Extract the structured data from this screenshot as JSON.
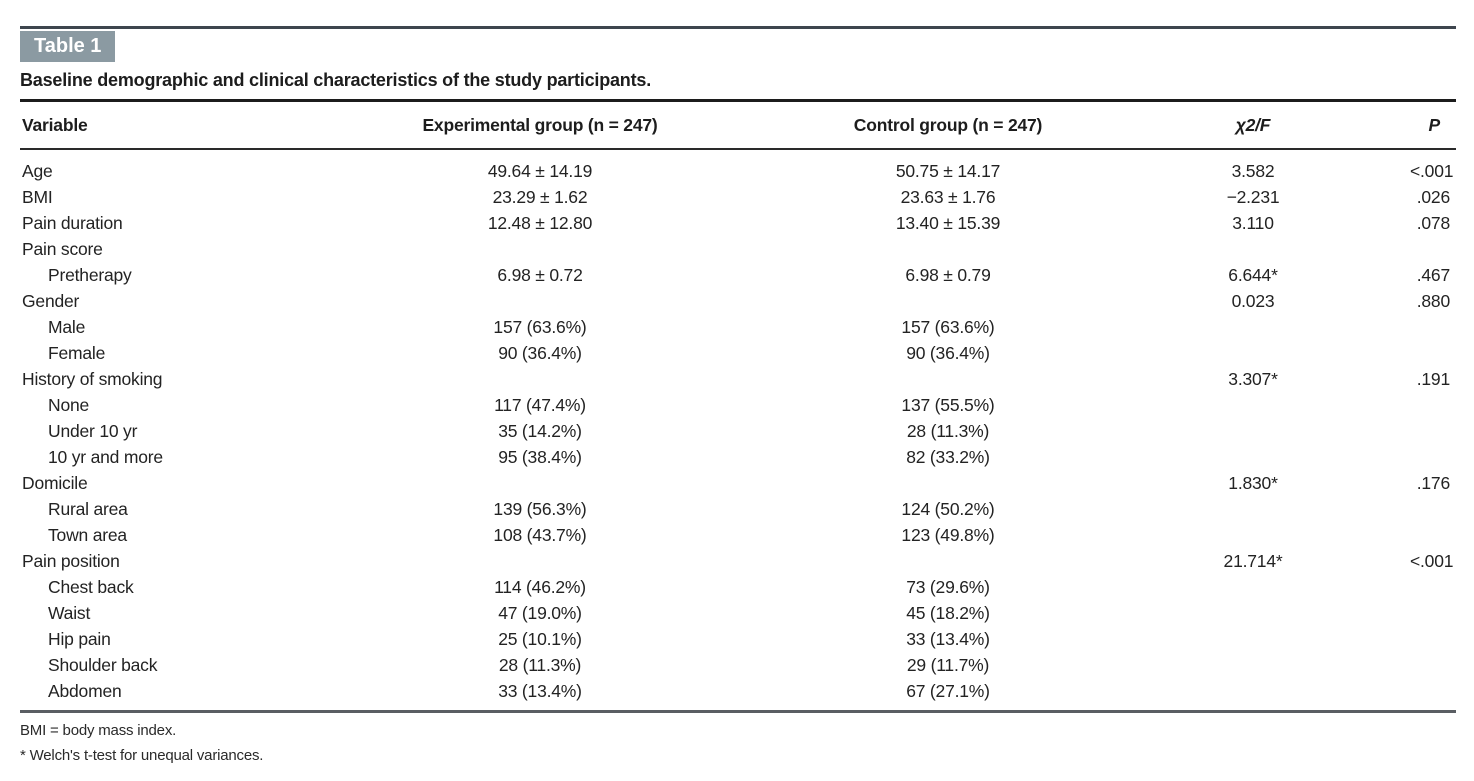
{
  "table_label": "Table 1",
  "title": "Baseline demographic and clinical characteristics of the study participants.",
  "columns": {
    "variable": "Variable",
    "experimental": "Experimental group (n = 247)",
    "control": "Control group (n = 247)",
    "chi2_f": "χ2/F",
    "p": "P"
  },
  "rows": [
    {
      "variable": "Age",
      "indent": 0,
      "experimental": "49.64 ± 14.19",
      "control": "50.75 ± 14.17",
      "chi2_f": "3.582",
      "p": "<.001"
    },
    {
      "variable": "BMI",
      "indent": 0,
      "experimental": "23.29 ± 1.62",
      "control": "23.63 ± 1.76",
      "chi2_f": "−2.231",
      "p": ".026"
    },
    {
      "variable": "Pain duration",
      "indent": 0,
      "experimental": "12.48 ± 12.80",
      "control": "13.40 ± 15.39",
      "chi2_f": "3.110",
      "p": ".078"
    },
    {
      "variable": "Pain score",
      "indent": 0,
      "experimental": "",
      "control": "",
      "chi2_f": "",
      "p": ""
    },
    {
      "variable": "Pretherapy",
      "indent": 1,
      "experimental": "6.98 ± 0.72",
      "control": "6.98 ± 0.79",
      "chi2_f": "6.644*",
      "p": ".467"
    },
    {
      "variable": "Gender",
      "indent": 0,
      "experimental": "",
      "control": "",
      "chi2_f": "0.023",
      "p": ".880"
    },
    {
      "variable": "Male",
      "indent": 1,
      "experimental": "157 (63.6%)",
      "control": "157 (63.6%)",
      "chi2_f": "",
      "p": ""
    },
    {
      "variable": "Female",
      "indent": 1,
      "experimental": "90 (36.4%)",
      "control": "90 (36.4%)",
      "chi2_f": "",
      "p": ""
    },
    {
      "variable": "History of smoking",
      "indent": 0,
      "experimental": "",
      "control": "",
      "chi2_f": "3.307*",
      "p": ".191"
    },
    {
      "variable": "None",
      "indent": 1,
      "experimental": "117 (47.4%)",
      "control": "137 (55.5%)",
      "chi2_f": "",
      "p": ""
    },
    {
      "variable": "Under 10 yr",
      "indent": 1,
      "experimental": "35 (14.2%)",
      "control": "28 (11.3%)",
      "chi2_f": "",
      "p": ""
    },
    {
      "variable": "10 yr and more",
      "indent": 1,
      "experimental": "95 (38.4%)",
      "control": "82 (33.2%)",
      "chi2_f": "",
      "p": ""
    },
    {
      "variable": "Domicile",
      "indent": 0,
      "experimental": "",
      "control": "",
      "chi2_f": "1.830*",
      "p": ".176"
    },
    {
      "variable": "Rural area",
      "indent": 1,
      "experimental": "139 (56.3%)",
      "control": "124 (50.2%)",
      "chi2_f": "",
      "p": ""
    },
    {
      "variable": "Town area",
      "indent": 1,
      "experimental": "108 (43.7%)",
      "control": "123 (49.8%)",
      "chi2_f": "",
      "p": ""
    },
    {
      "variable": "Pain position",
      "indent": 0,
      "experimental": "",
      "control": "",
      "chi2_f": "21.714*",
      "p": "<.001"
    },
    {
      "variable": "Chest back",
      "indent": 1,
      "experimental": "114 (46.2%)",
      "control": "73 (29.6%)",
      "chi2_f": "",
      "p": ""
    },
    {
      "variable": "Waist",
      "indent": 1,
      "experimental": "47 (19.0%)",
      "control": "45 (18.2%)",
      "chi2_f": "",
      "p": ""
    },
    {
      "variable": "Hip pain",
      "indent": 1,
      "experimental": "25 (10.1%)",
      "control": "33 (13.4%)",
      "chi2_f": "",
      "p": ""
    },
    {
      "variable": "Shoulder back",
      "indent": 1,
      "experimental": "28 (11.3%)",
      "control": "29 (11.7%)",
      "chi2_f": "",
      "p": ""
    },
    {
      "variable": "Abdomen",
      "indent": 1,
      "experimental": "33 (13.4%)",
      "control": "67 (27.1%)",
      "chi2_f": "",
      "p": ""
    }
  ],
  "footnotes": {
    "abbreviation": "BMI = body mass index.",
    "asterisk": "* Welch's t-test for unequal variances."
  },
  "colors": {
    "label_bg": "#8b9aa2",
    "top_rule": "#3e464e",
    "header_rule": "#1c1c1c",
    "bottom_rule": "#5a5e63",
    "text": "#232323"
  }
}
